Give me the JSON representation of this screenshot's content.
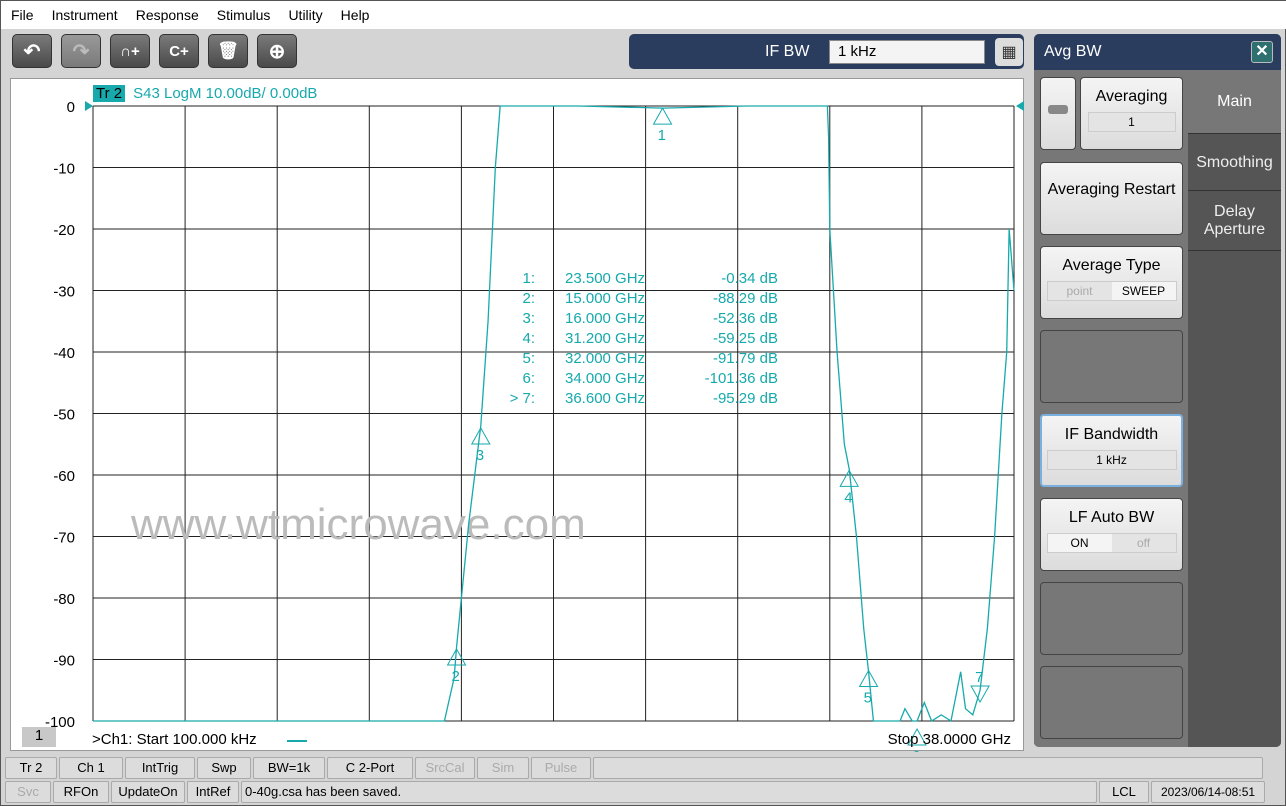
{
  "menu": [
    "File",
    "Instrument",
    "Response",
    "Stimulus",
    "Utility",
    "Help"
  ],
  "toolbar": [
    {
      "icon": "undo-icon",
      "glyph": "↶"
    },
    {
      "icon": "redo-icon",
      "glyph": "↷"
    },
    {
      "icon": "add-marker-icon",
      "glyph": "∩+"
    },
    {
      "icon": "add-channel-icon",
      "glyph": "C+"
    },
    {
      "icon": "trash-icon",
      "glyph": "🗑"
    },
    {
      "icon": "zoom-icon",
      "glyph": "⊕"
    }
  ],
  "ifbw": {
    "label": "IF BW",
    "value": "1 kHz",
    "keypad_glyph": "▦"
  },
  "trace": {
    "tag": "Tr 2",
    "desc": "S43 LogM 10.00dB/  0.00dB",
    "color": "#17a9ac"
  },
  "channel": {
    "number": "1",
    "start": ">Ch1:  Start  100.000 kHz",
    "stop": "Stop  38.0000 GHz"
  },
  "chart_data": {
    "type": "line",
    "xlim": [
      0.0001,
      38
    ],
    "x_unit": "GHz",
    "ylim": [
      -100,
      0
    ],
    "yticks": [
      "0",
      "-10",
      "-20",
      "-30",
      "-40",
      "-50",
      "-60",
      "-70",
      "-80",
      "-90",
      "-100"
    ],
    "grid": true,
    "series": [
      {
        "x": [
          0.0001,
          14.5,
          14.9,
          15.0,
          15.2,
          15.5,
          16.0,
          16.3,
          16.6,
          16.8,
          17.5,
          20,
          23.5,
          27,
          30.3,
          30.35,
          30.4,
          30.7,
          31.0,
          31.2,
          31.5,
          31.8,
          32.0,
          32.2,
          33.3,
          33.5,
          33.8,
          34.0,
          34.3,
          34.6,
          35.0,
          35.4,
          35.8,
          36.0,
          36.3,
          36.6,
          36.9,
          37.2,
          37.5,
          37.7,
          37.8,
          37.9,
          38
        ],
        "y": [
          -100,
          -100,
          -93,
          -88,
          -80,
          -68,
          -52,
          -35,
          -10,
          0,
          0,
          0,
          -0.34,
          0,
          0,
          -5,
          -20,
          -40,
          -55,
          -59,
          -70,
          -85,
          -92,
          -100,
          -100,
          -98,
          -100,
          -101,
          -97,
          -100,
          -99,
          -100,
          -92,
          -98,
          -99,
          -95,
          -85,
          -70,
          -50,
          -40,
          -20,
          -25,
          -30
        ]
      }
    ],
    "markers": [
      {
        "id": "1",
        "label": "1:",
        "freq": "23.500  GHz",
        "value": "-0.34 dB",
        "x": 23.5,
        "y": -0.34,
        "dir": "up"
      },
      {
        "id": "2",
        "label": "2:",
        "freq": "15.000  GHz",
        "value": "-88.29 dB",
        "x": 15.0,
        "y": -88.29,
        "dir": "up"
      },
      {
        "id": "3",
        "label": "3:",
        "freq": "16.000  GHz",
        "value": "-52.36 dB",
        "x": 16.0,
        "y": -52.36,
        "dir": "up"
      },
      {
        "id": "4",
        "label": "4:",
        "freq": "31.200  GHz",
        "value": "-59.25 dB",
        "x": 31.2,
        "y": -59.25,
        "dir": "up"
      },
      {
        "id": "5",
        "label": "5:",
        "freq": "32.000  GHz",
        "value": "-91.79 dB",
        "x": 32.0,
        "y": -91.79,
        "dir": "up"
      },
      {
        "id": "6",
        "label": "6:",
        "freq": "34.000  GHz",
        "value": "-101.36 dB",
        "x": 34.0,
        "y": -101.36,
        "dir": "up"
      },
      {
        "id": "7",
        "label": "> 7:",
        "freq": "36.600  GHz",
        "value": "-95.29 dB",
        "x": 36.6,
        "y": -95.29,
        "dir": "down"
      }
    ]
  },
  "watermark": "www.wtmicrowave.com",
  "panel": {
    "title": "Avg BW",
    "close": "✕",
    "averaging": {
      "label": "Averaging",
      "value": "1"
    },
    "restart": "Averaging Restart",
    "avg_type": {
      "label": "Average Type",
      "opt1": "point",
      "opt2": "SWEEP"
    },
    "ifbw": {
      "label": "IF Bandwidth",
      "value": "1 kHz"
    },
    "lfauto": {
      "label": "LF Auto BW",
      "opt1": "ON",
      "opt2": "off"
    },
    "tabs": [
      "Main",
      "Smoothing",
      "Delay Aperture"
    ]
  },
  "status1": [
    "Tr 2",
    "Ch 1",
    "IntTrig",
    "Swp",
    "BW=1k",
    "C  2-Port",
    "SrcCal",
    "Sim",
    "Pulse"
  ],
  "status2": {
    "svc": "Svc",
    "rfon": "RFOn",
    "update": "UpdateOn",
    "intref": "IntRef",
    "message": "0-40g.csa has been saved.",
    "lcl": "LCL",
    "datetime": "2023/06/14-08:51"
  }
}
